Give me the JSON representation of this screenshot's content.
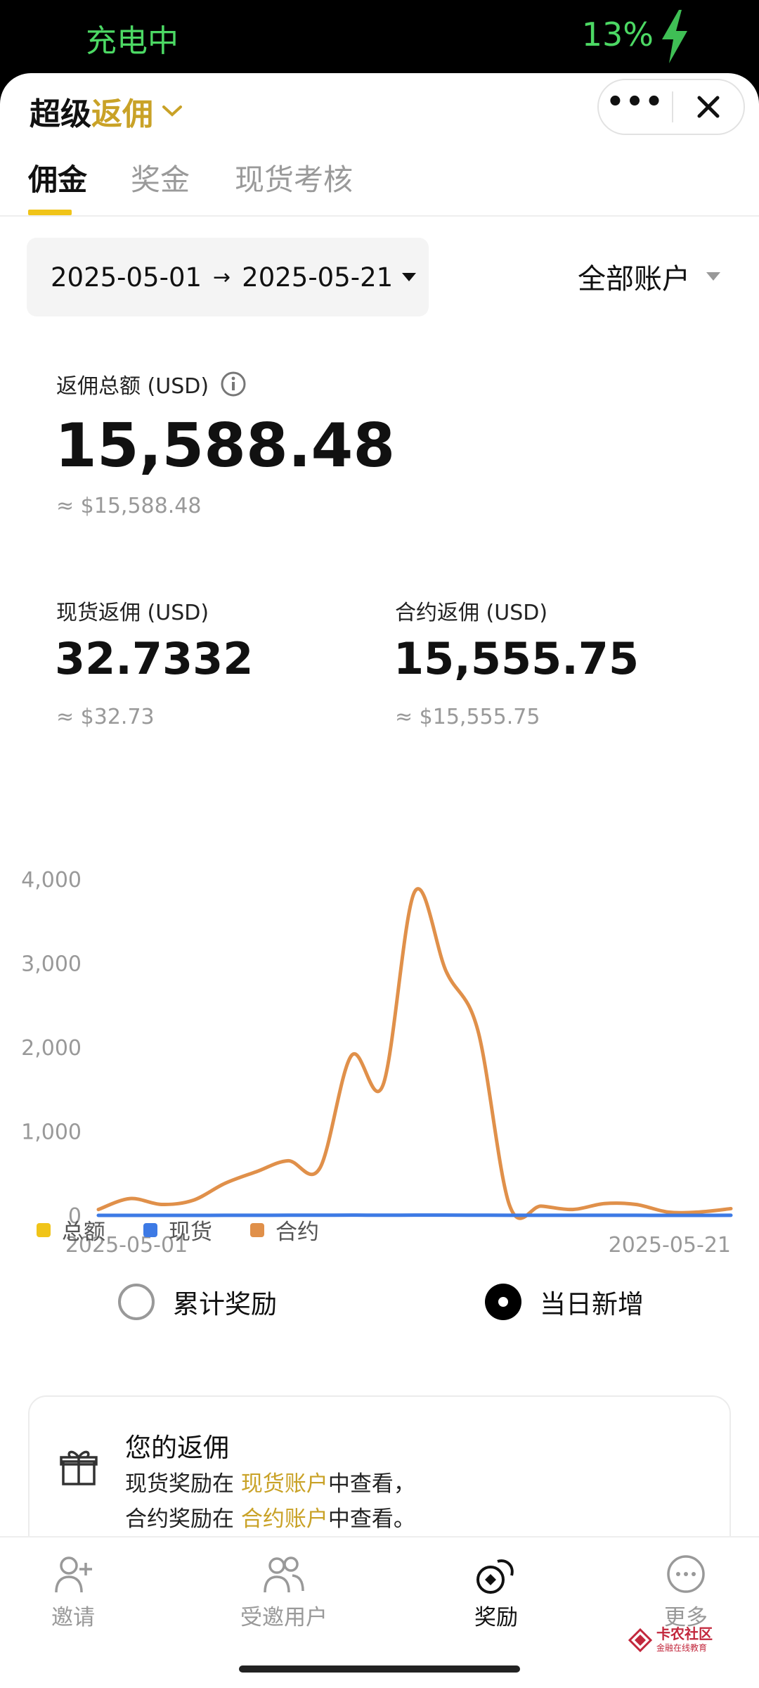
{
  "status_bar": {
    "left_text": "充电中",
    "battery": "13%"
  },
  "header": {
    "title_main": "超级",
    "title_accent": "返佣",
    "colors": {
      "accent": "#c9a227"
    }
  },
  "tabs": [
    {
      "label": "佣金",
      "active": true
    },
    {
      "label": "奖金",
      "active": false
    },
    {
      "label": "现货考核",
      "active": false
    }
  ],
  "filters": {
    "date_start": "2025-05-01",
    "date_arrow": "→",
    "date_end": "2025-05-21",
    "account": "全部账户"
  },
  "summary": {
    "total_label": "返佣总额 (USD)",
    "total_value": "15,588.48",
    "total_approx": "≈ $15,588.48",
    "spot_label": "现货返佣 (USD)",
    "spot_value": "32.7332",
    "spot_approx": "≈ $32.73",
    "contract_label": "合约返佣 (USD)",
    "contract_value": "15,555.75",
    "contract_approx": "≈ $15,555.75"
  },
  "chart_data": {
    "type": "line",
    "x_start_label": "2025-05-01",
    "x_end_label": "2025-05-21",
    "y_ticks": [
      "4,000",
      "3,000",
      "2,000",
      "1,000",
      "0"
    ],
    "ylim": [
      0,
      4000
    ],
    "x": [
      "05-01",
      "05-02",
      "05-03",
      "05-04",
      "05-05",
      "05-06",
      "05-07",
      "05-08",
      "05-09",
      "05-10",
      "05-11",
      "05-12",
      "05-13",
      "05-14",
      "05-15",
      "05-16",
      "05-17",
      "05-18",
      "05-19",
      "05-20",
      "05-21"
    ],
    "series": [
      {
        "name": "合约",
        "color": "#e0904a",
        "values": [
          70,
          200,
          130,
          180,
          380,
          520,
          650,
          560,
          1900,
          1550,
          3850,
          2900,
          2200,
          120,
          110,
          70,
          140,
          130,
          40,
          40,
          80
        ]
      },
      {
        "name": "现货",
        "color": "#3d7ae5",
        "values": [
          0,
          0,
          0,
          0,
          1,
          1,
          2,
          2,
          3,
          2,
          3,
          3,
          2,
          1,
          1,
          1,
          1,
          1,
          0,
          0,
          1
        ]
      }
    ]
  },
  "legend": [
    {
      "label": "总额",
      "color": "#f0c419"
    },
    {
      "label": "现货",
      "color": "#3d7ae5"
    },
    {
      "label": "合约",
      "color": "#e0904a"
    }
  ],
  "view_mode": {
    "cumulative": "累计奖励",
    "daily": "当日新增",
    "selected": "daily"
  },
  "rebate_card": {
    "title": "您的返佣",
    "line1_prefix": "现货奖励在 ",
    "line1_link": "现货账户",
    "line1_suffix": "中查看，",
    "line2_prefix": "合约奖励在 ",
    "line2_link": "合约账户",
    "line2_suffix": "中查看。"
  },
  "bottom_nav": [
    {
      "label": "邀请",
      "icon": "invite-icon"
    },
    {
      "label": "受邀用户",
      "icon": "users-icon"
    },
    {
      "label": "奖励",
      "icon": "reward-icon",
      "active": true
    },
    {
      "label": "更多",
      "icon": "more-icon"
    }
  ],
  "watermark": {
    "text": "卡农社区",
    "sub": "金融在线教育"
  }
}
